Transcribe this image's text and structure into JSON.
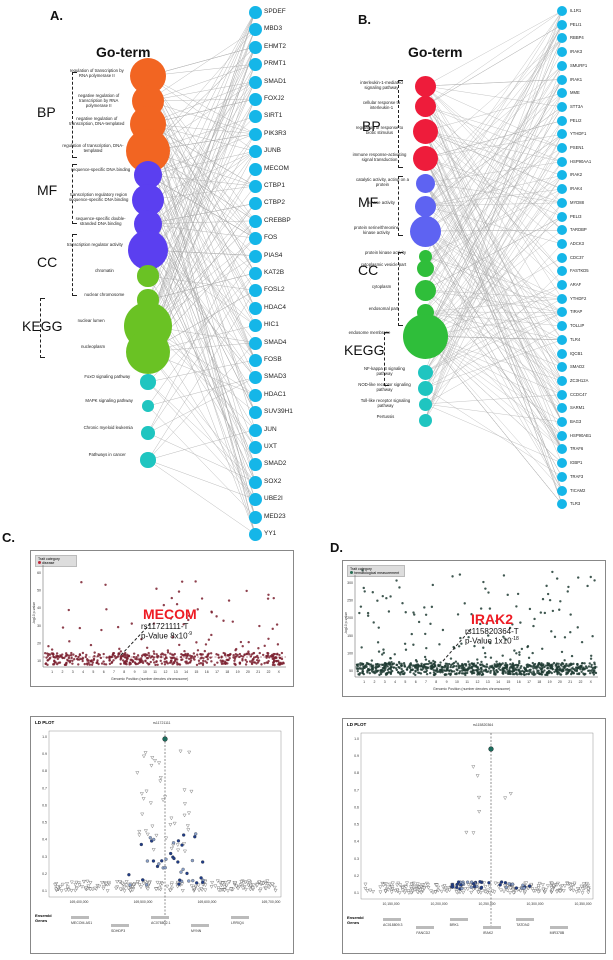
{
  "panels": {
    "a": "A.",
    "b": "B.",
    "c": "C.",
    "d": "D."
  },
  "goterm_title": "Go-term",
  "categories": {
    "bp": "BP",
    "mf": "MF",
    "cc": "CC",
    "kegg": "KEGG"
  },
  "panel_a": {
    "terms": [
      {
        "label": "regulation of transcription by RNA polymerase II",
        "color": "#f26522"
      },
      {
        "label": "negative regulation of transcription by RNA polymerase II",
        "color": "#f26522"
      },
      {
        "label": "negative regulation of transcription, DNA-templated",
        "color": "#f26522"
      },
      {
        "label": "regulation of transcription, DNA-templated",
        "color": "#f26522"
      },
      {
        "label": "sequence-specific DNA binding",
        "color": "#5b3ff0"
      },
      {
        "label": "transcription regulatory region sequence-specific DNA binding",
        "color": "#5b3ff0"
      },
      {
        "label": "sequence-specific double-stranded DNA binding",
        "color": "#5b3ff0"
      },
      {
        "label": "transcription regulator activity",
        "color": "#5b3ff0"
      },
      {
        "label": "chromatin",
        "color": "#6ac224"
      },
      {
        "label": "nuclear chromosome",
        "color": "#6ac224"
      },
      {
        "label": "nuclear lumen",
        "color": "#6ac224"
      },
      {
        "label": "nucleoplasm",
        "color": "#6ac224"
      },
      {
        "label": "FoxO signaling pathway",
        "color": "#1fc5c0"
      },
      {
        "label": "MAPK signaling pathway",
        "color": "#1fc5c0"
      },
      {
        "label": "Chronic myeloid leukemia",
        "color": "#1fc5c0"
      },
      {
        "label": "Pathways in cancer",
        "color": "#1fc5c0"
      }
    ],
    "genes": [
      "SPDEF",
      "MBD3",
      "EHMT2",
      "PRMT1",
      "SMAD1",
      "FOXJ2",
      "SIRT1",
      "PIK3R3",
      "JUNB",
      "MECOM",
      "CTBP1",
      "CTBP2",
      "CREBBP",
      "FOS",
      "PIAS4",
      "KAT2B",
      "FOSL2",
      "HDAC4",
      "HIC1",
      "SMAD4",
      "FOSB",
      "SMAD3",
      "HDAC1",
      "SUV39H1",
      "JUN",
      "UXT",
      "SMAD2",
      "SOX2",
      "UBE2I",
      "MED23",
      "YY1"
    ]
  },
  "panel_b": {
    "terms": [
      {
        "label": "interleukin-1-mediated signaling pathway",
        "color": "#ee1c3b"
      },
      {
        "label": "cellular response to interleukin-1",
        "color": "#ee1c3b"
      },
      {
        "label": "regulation of response to biotic stimulus",
        "color": "#ee1c3b"
      },
      {
        "label": "immune response-activating signal transduction",
        "color": "#ee1c3b"
      },
      {
        "label": "catalytic activity, acting on a protein",
        "color": "#5e63f2"
      },
      {
        "label": "kinase activity",
        "color": "#5e63f2"
      },
      {
        "label": "protein serine/threonine kinase activity",
        "color": "#5e63f2"
      },
      {
        "label": "protein kinase activity",
        "color": "#2fbe3a"
      },
      {
        "label": "cytoplasmic vesicle part",
        "color": "#2fbe3a"
      },
      {
        "label": "cytoplasm",
        "color": "#2fbe3a"
      },
      {
        "label": "endosomal part",
        "color": "#2fbe3a"
      },
      {
        "label": "endosome membrane",
        "color": "#2fbe3a"
      },
      {
        "label": "NF-kappa B signaling pathway",
        "color": "#1fc5c0"
      },
      {
        "label": "NOD-like receptor signaling pathway",
        "color": "#1fc5c0"
      },
      {
        "label": "Toll-like receptor signaling pathway",
        "color": "#1fc5c0"
      },
      {
        "label": "Pertussis",
        "color": "#1fc5c0"
      }
    ],
    "genes": [
      "IL1R1",
      "PELI1",
      "RBBP4",
      "IRAK3",
      "SMURF1",
      "IRAK1",
      "MME",
      "STT3A",
      "PELI2",
      "YTHDF1",
      "PSEN1",
      "HSP90AA1",
      "IRAK2",
      "IRAK4",
      "MYD88",
      "PELI3",
      "TARDBP",
      "ADCK3",
      "CDC37",
      "FASTKD5",
      "ARAF",
      "YTHDF2",
      "TIRAP",
      "TOLLIP",
      "TLR4",
      "IQCB1",
      "SMAD2",
      "ZC3H12A",
      "CCDC47",
      "SARM1",
      "BAG3",
      "HSP90AB1",
      "TRAF6",
      "IGBP1",
      "TRAF3",
      "TICAM2",
      "TLR3"
    ]
  },
  "panel_c": {
    "legend_title": "Trait category",
    "legend_item": "disease",
    "gene": "MECOM",
    "snp": "rs11721111-T",
    "pvalue": "p-Value 8x10",
    "pvalue_exp": "-9",
    "xlabel": "Genomic Position (number denotes chromosome)",
    "ylabel": "-log10 p-value",
    "y_ticks": [
      "60",
      "50",
      "40",
      "30",
      "20",
      "10"
    ],
    "chromosomes": [
      "1",
      "2",
      "3",
      "4",
      "5",
      "6",
      "7",
      "8",
      "9",
      "10",
      "11",
      "12",
      "13",
      "14",
      "15",
      "16",
      "17",
      "18",
      "19",
      "20",
      "21",
      "22",
      "X"
    ],
    "ld_title": "LD PLOT",
    "ld_snp": "rs11721111",
    "ld_x_ticks": [
      "169,400,000",
      "169,500,000",
      "169,600,000",
      "169,700,000"
    ],
    "ld_y_ticks": [
      "1.0",
      "0.9",
      "0.8",
      "0.7",
      "0.6",
      "0.5",
      "0.4",
      "0.3",
      "0.2",
      "0.1"
    ],
    "ensembl_label": "Ensembl Genes",
    "ensembl_genes": [
      "MECOM-AS1",
      "SDHDP3",
      "AC078802.1",
      "MYNN",
      "LRRIQ4"
    ],
    "colors": {
      "point": "#7a1f2e",
      "threshold": "#7a1f2e",
      "title": "#ee1c24"
    }
  },
  "panel_d": {
    "legend_title": "Trait category",
    "legend_item": "hematological measurement",
    "gene": "IRAK2",
    "snp": "rs115820364-T",
    "pvalue": "p-Value 1x10",
    "pvalue_exp": "-18",
    "xlabel": "Genomic Position (number denotes chromosome)",
    "ylabel": "-log10 p-value",
    "y_ticks": [
      "300",
      "250",
      "200",
      "150",
      "100",
      "50"
    ],
    "chromosomes": [
      "1",
      "2",
      "3",
      "4",
      "5",
      "6",
      "7",
      "8",
      "9",
      "10",
      "11",
      "12",
      "13",
      "14",
      "15",
      "16",
      "17",
      "18",
      "19",
      "20",
      "21",
      "22",
      "X"
    ],
    "ld_title": "LD PLOT",
    "ld_snp": "rs115820364",
    "ld_x_ticks": [
      "10,150,000",
      "10,200,000",
      "10,250,000",
      "10,300,000",
      "10,350,000"
    ],
    "ld_y_ticks": [
      "1.0",
      "0.9",
      "0.8",
      "0.7",
      "0.6",
      "0.5",
      "0.4",
      "0.3",
      "0.2",
      "0.1"
    ],
    "ensembl_label": "Ensembl Genes",
    "ensembl_genes": [
      "AC018809.3",
      "FANCD2",
      "BRK1",
      "IRAK2",
      "TATDN2",
      "MIR378B"
    ],
    "colors": {
      "point": "#1e3b33",
      "threshold": "#1e3b33",
      "title": "#ee1c24"
    }
  },
  "colors": {
    "gene_node": "#15b6e8",
    "edge": "#aaaaaa"
  }
}
